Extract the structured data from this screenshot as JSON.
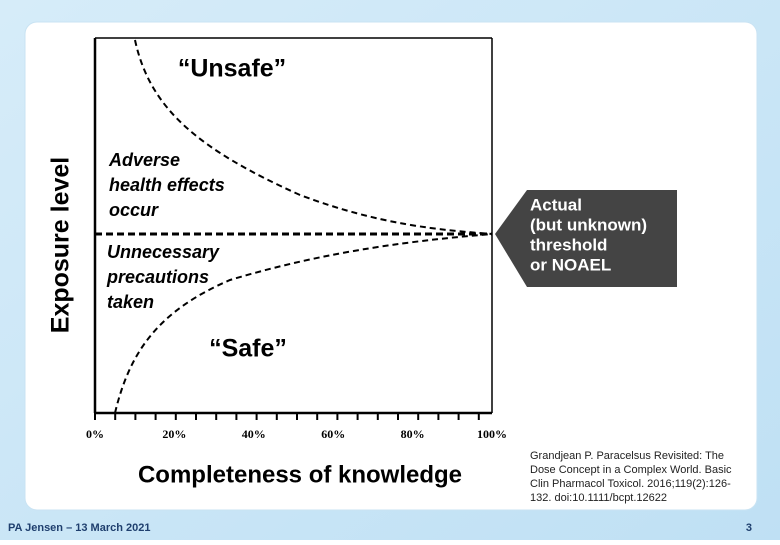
{
  "slide": {
    "figure": {
      "y_label": "Exposure level",
      "x_label": "Completeness of knowledge",
      "x_ticks": [
        "0%",
        "20%",
        "40%",
        "60%",
        "80%",
        "100%"
      ],
      "unsafe": "“Unsafe”",
      "safe": "“Safe”",
      "adverse": [
        "Adverse",
        "health effects",
        "occur"
      ],
      "precautions": [
        "Unnecessary",
        "precautions",
        "taken"
      ],
      "callout": [
        "Actual",
        "(but unknown)",
        "threshold",
        "or NOAEL"
      ]
    },
    "citation": [
      "Grandjean P. Paracelsus Revisited: The",
      "Dose Concept in a Complex World. Basic",
      "Clin Pharmacol Toxicol. 2016;119(2):126-",
      "132. doi:10.1111/bcpt.12622"
    ],
    "footer": {
      "author": "PA Jensen – 13 March 2021",
      "page": "3"
    }
  }
}
